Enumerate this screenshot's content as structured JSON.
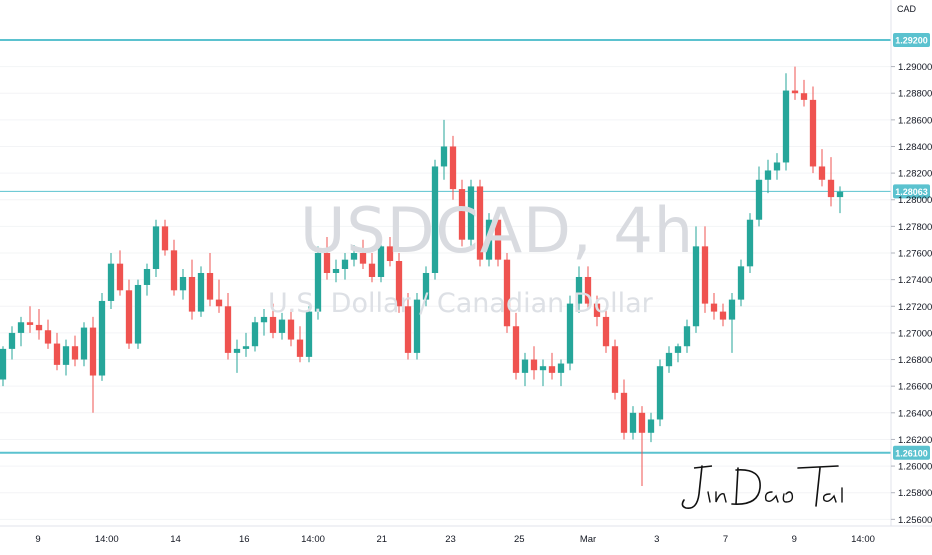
{
  "chart_data": {
    "type": "candlestick",
    "symbol": "USDCAD, 4h",
    "description": "U.S. Dollar / Canadian Dollar",
    "currency": "CAD",
    "y_ticks": [
      "1.29000",
      "1.28800",
      "1.28600",
      "1.28400",
      "1.28200",
      "1.28000",
      "1.27800",
      "1.27600",
      "1.27400",
      "1.27200",
      "1.27000",
      "1.26800",
      "1.26600",
      "1.26400",
      "1.26200",
      "1.26000",
      "1.25800",
      "1.25600"
    ],
    "x_ticks": [
      "9",
      "14:00",
      "14",
      "16",
      "14:00",
      "21",
      "23",
      "25",
      "Mar",
      "3",
      "7",
      "9",
      "14:00"
    ],
    "ylim": [
      1.2555,
      1.295
    ],
    "horizontal_levels": [
      {
        "value": 1.292,
        "label": "1.29200",
        "color": "#5bc2cf"
      },
      {
        "value": 1.261,
        "label": "1.26100",
        "color": "#5bc2cf"
      }
    ],
    "last_price": {
      "value": 1.28063,
      "label": "1.28063",
      "color": "#5bc2cf"
    },
    "up_color": "#26a69a",
    "down_color": "#ef5350",
    "candles": [
      [
        1.2665,
        1.269,
        1.266,
        1.2688
      ],
      [
        1.2688,
        1.2705,
        1.268,
        1.27
      ],
      [
        1.27,
        1.2712,
        1.269,
        1.2708
      ],
      [
        1.2708,
        1.272,
        1.27,
        1.2706
      ],
      [
        1.2706,
        1.2718,
        1.2695,
        1.2702
      ],
      [
        1.2702,
        1.271,
        1.2688,
        1.2692
      ],
      [
        1.2692,
        1.27,
        1.2672,
        1.2676
      ],
      [
        1.2676,
        1.2695,
        1.2668,
        1.269
      ],
      [
        1.269,
        1.2698,
        1.2675,
        1.268
      ],
      [
        1.268,
        1.2708,
        1.2675,
        1.2704
      ],
      [
        1.2704,
        1.2712,
        1.264,
        1.2668
      ],
      [
        1.2668,
        1.273,
        1.2664,
        1.2724
      ],
      [
        1.2724,
        1.276,
        1.2718,
        1.2752
      ],
      [
        1.2752,
        1.2762,
        1.2728,
        1.2732
      ],
      [
        1.2732,
        1.274,
        1.2688,
        1.2692
      ],
      [
        1.2692,
        1.274,
        1.2688,
        1.2736
      ],
      [
        1.2736,
        1.2752,
        1.2728,
        1.2748
      ],
      [
        1.2748,
        1.2785,
        1.2742,
        1.278
      ],
      [
        1.278,
        1.2785,
        1.2758,
        1.2762
      ],
      [
        1.2762,
        1.277,
        1.2728,
        1.2732
      ],
      [
        1.2732,
        1.2748,
        1.2725,
        1.2742
      ],
      [
        1.2742,
        1.2755,
        1.271,
        1.2716
      ],
      [
        1.2716,
        1.275,
        1.2712,
        1.2745
      ],
      [
        1.2745,
        1.276,
        1.272,
        1.2725
      ],
      [
        1.2725,
        1.274,
        1.2715,
        1.272
      ],
      [
        1.272,
        1.273,
        1.268,
        1.2685
      ],
      [
        1.2685,
        1.2695,
        1.267,
        1.2688
      ],
      [
        1.2688,
        1.27,
        1.2682,
        1.269
      ],
      [
        1.269,
        1.2712,
        1.2686,
        1.2708
      ],
      [
        1.2708,
        1.2718,
        1.2698,
        1.2712
      ],
      [
        1.2712,
        1.2722,
        1.2696,
        1.27
      ],
      [
        1.27,
        1.2715,
        1.2695,
        1.271
      ],
      [
        1.271,
        1.2718,
        1.269,
        1.2695
      ],
      [
        1.2695,
        1.2705,
        1.2678,
        1.2682
      ],
      [
        1.2682,
        1.272,
        1.2678,
        1.2716
      ],
      [
        1.2716,
        1.2765,
        1.271,
        1.276
      ],
      [
        1.276,
        1.2772,
        1.274,
        1.2745
      ],
      [
        1.2745,
        1.2755,
        1.2738,
        1.2748
      ],
      [
        1.2748,
        1.276,
        1.274,
        1.2755
      ],
      [
        1.2755,
        1.2766,
        1.275,
        1.276
      ],
      [
        1.276,
        1.277,
        1.2748,
        1.2752
      ],
      [
        1.2752,
        1.276,
        1.2738,
        1.2742
      ],
      [
        1.2742,
        1.2768,
        1.2738,
        1.2765
      ],
      [
        1.2765,
        1.2772,
        1.275,
        1.2754
      ],
      [
        1.2754,
        1.276,
        1.2715,
        1.272
      ],
      [
        1.272,
        1.273,
        1.268,
        1.2685
      ],
      [
        1.2685,
        1.273,
        1.268,
        1.2725
      ],
      [
        1.2725,
        1.275,
        1.272,
        1.2745
      ],
      [
        1.2745,
        1.283,
        1.274,
        1.2825
      ],
      [
        1.2825,
        1.286,
        1.2815,
        1.284
      ],
      [
        1.284,
        1.2848,
        1.28,
        1.2808
      ],
      [
        1.2808,
        1.2815,
        1.2765,
        1.277
      ],
      [
        1.277,
        1.2815,
        1.2762,
        1.281
      ],
      [
        1.281,
        1.2815,
        1.275,
        1.2755
      ],
      [
        1.2755,
        1.279,
        1.275,
        1.2785
      ],
      [
        1.2785,
        1.2792,
        1.275,
        1.2755
      ],
      [
        1.2755,
        1.276,
        1.27,
        1.2705
      ],
      [
        1.2705,
        1.2715,
        1.2665,
        1.267
      ],
      [
        1.267,
        1.2685,
        1.266,
        1.268
      ],
      [
        1.268,
        1.269,
        1.2665,
        1.2672
      ],
      [
        1.2672,
        1.268,
        1.266,
        1.2675
      ],
      [
        1.2675,
        1.2685,
        1.2665,
        1.267
      ],
      [
        1.267,
        1.268,
        1.266,
        1.2677
      ],
      [
        1.2677,
        1.2728,
        1.2672,
        1.2722
      ],
      [
        1.2722,
        1.275,
        1.2715,
        1.2742
      ],
      [
        1.2742,
        1.275,
        1.2718,
        1.2722
      ],
      [
        1.2722,
        1.2728,
        1.2705,
        1.2712
      ],
      [
        1.2712,
        1.2718,
        1.2685,
        1.269
      ],
      [
        1.269,
        1.2695,
        1.265,
        1.2655
      ],
      [
        1.2655,
        1.2665,
        1.262,
        1.2625
      ],
      [
        1.2625,
        1.2645,
        1.262,
        1.264
      ],
      [
        1.264,
        1.2645,
        1.2585,
        1.2625
      ],
      [
        1.2625,
        1.264,
        1.2618,
        1.2635
      ],
      [
        1.2635,
        1.268,
        1.263,
        1.2675
      ],
      [
        1.2675,
        1.269,
        1.267,
        1.2685
      ],
      [
        1.2685,
        1.2692,
        1.2678,
        1.269
      ],
      [
        1.269,
        1.271,
        1.2685,
        1.2705
      ],
      [
        1.2705,
        1.278,
        1.27,
        1.2765
      ],
      [
        1.2765,
        1.278,
        1.2715,
        1.2722
      ],
      [
        1.2722,
        1.273,
        1.271,
        1.2716
      ],
      [
        1.2716,
        1.2722,
        1.2705,
        1.271
      ],
      [
        1.271,
        1.273,
        1.2685,
        1.2725
      ],
      [
        1.2725,
        1.2755,
        1.272,
        1.275
      ],
      [
        1.275,
        1.279,
        1.2745,
        1.2785
      ],
      [
        1.2785,
        1.2825,
        1.278,
        1.2815
      ],
      [
        1.2815,
        1.283,
        1.2805,
        1.2822
      ],
      [
        1.2822,
        1.2835,
        1.2815,
        1.2828
      ],
      [
        1.2828,
        1.2895,
        1.2822,
        1.2882
      ],
      [
        1.2882,
        1.29,
        1.2875,
        1.288
      ],
      [
        1.288,
        1.289,
        1.287,
        1.2875
      ],
      [
        1.2875,
        1.2885,
        1.282,
        1.2825
      ],
      [
        1.2825,
        1.2838,
        1.281,
        1.2815
      ],
      [
        1.2815,
        1.2832,
        1.2795,
        1.2802
      ],
      [
        1.2802,
        1.281,
        1.279,
        1.2806
      ]
    ]
  }
}
